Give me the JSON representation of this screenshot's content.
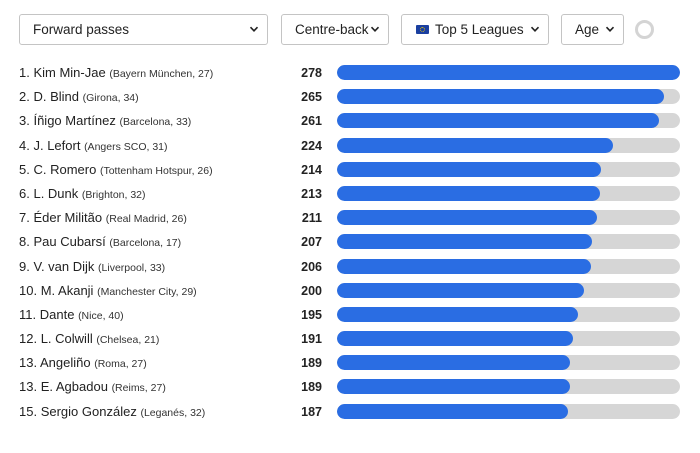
{
  "filters": {
    "metric": "Forward passes",
    "position": "Centre-back",
    "league": "Top 5 Leagues",
    "age": "Age"
  },
  "colors": {
    "bar_fill": "#2a6de3",
    "bar_track": "#d6d6d6"
  },
  "chart_data": {
    "type": "bar",
    "xlim": [
      0,
      278
    ],
    "rows": [
      {
        "rank": "1.",
        "name": "Kim Min-Jae",
        "meta": "(Bayern München, 27)",
        "value": 278
      },
      {
        "rank": "2.",
        "name": "D. Blind",
        "meta": "(Girona, 34)",
        "value": 265
      },
      {
        "rank": "3.",
        "name": "Íñigo Martínez",
        "meta": "(Barcelona, 33)",
        "value": 261
      },
      {
        "rank": "4.",
        "name": "J. Lefort",
        "meta": "(Angers SCO, 31)",
        "value": 224
      },
      {
        "rank": "5.",
        "name": "C. Romero",
        "meta": "(Tottenham Hotspur, 26)",
        "value": 214
      },
      {
        "rank": "6.",
        "name": "L. Dunk",
        "meta": "(Brighton, 32)",
        "value": 213
      },
      {
        "rank": "7.",
        "name": "Éder Militão",
        "meta": "(Real Madrid, 26)",
        "value": 211
      },
      {
        "rank": "8.",
        "name": "Pau Cubarsí",
        "meta": "(Barcelona, 17)",
        "value": 207
      },
      {
        "rank": "9.",
        "name": "V. van Dijk",
        "meta": "(Liverpool, 33)",
        "value": 206
      },
      {
        "rank": "10.",
        "name": "M. Akanji",
        "meta": "(Manchester City, 29)",
        "value": 200
      },
      {
        "rank": "11.",
        "name": "Dante",
        "meta": "(Nice, 40)",
        "value": 195
      },
      {
        "rank": "12.",
        "name": "L. Colwill",
        "meta": "(Chelsea, 21)",
        "value": 191
      },
      {
        "rank": "13.",
        "name": "Angeliño",
        "meta": "(Roma, 27)",
        "value": 189
      },
      {
        "rank": "13.",
        "name": "E. Agbadou",
        "meta": "(Reims, 27)",
        "value": 189
      },
      {
        "rank": "15.",
        "name": "Sergio González",
        "meta": "(Leganés, 32)",
        "value": 187
      }
    ]
  }
}
